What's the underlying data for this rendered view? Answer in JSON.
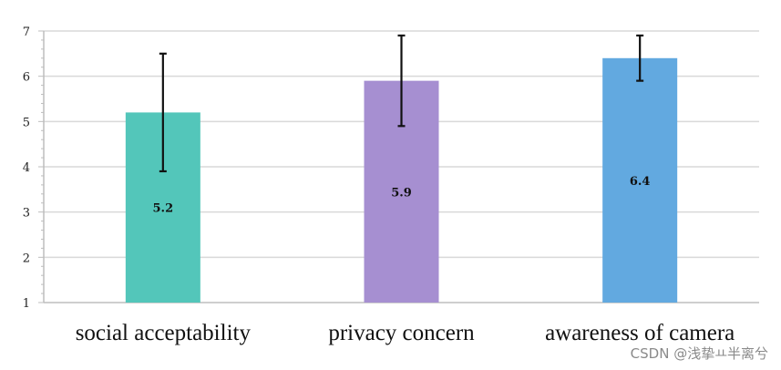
{
  "chart_data": {
    "type": "bar",
    "categories": [
      "social acceptability",
      "privacy concern",
      "awareness of camera"
    ],
    "values": [
      5.2,
      5.9,
      6.4
    ],
    "data_labels": [
      "5.2",
      "5.9",
      "6.4"
    ],
    "error_bars": [
      [
        3.9,
        6.5
      ],
      [
        4.9,
        6.9
      ],
      [
        5.9,
        6.9
      ]
    ],
    "colors": [
      "#53c6ba",
      "#a68fd1",
      "#62a9e0"
    ],
    "ylim": [
      1,
      7
    ],
    "yticks": [
      1,
      2,
      3,
      4,
      5,
      6,
      7
    ],
    "ytick_labels": [
      "1",
      "2",
      "3",
      "4",
      "5",
      "6",
      "7"
    ],
    "grid": true,
    "legend": "none"
  },
  "watermark": "CSDN @浅挚ㅛ半离兮"
}
